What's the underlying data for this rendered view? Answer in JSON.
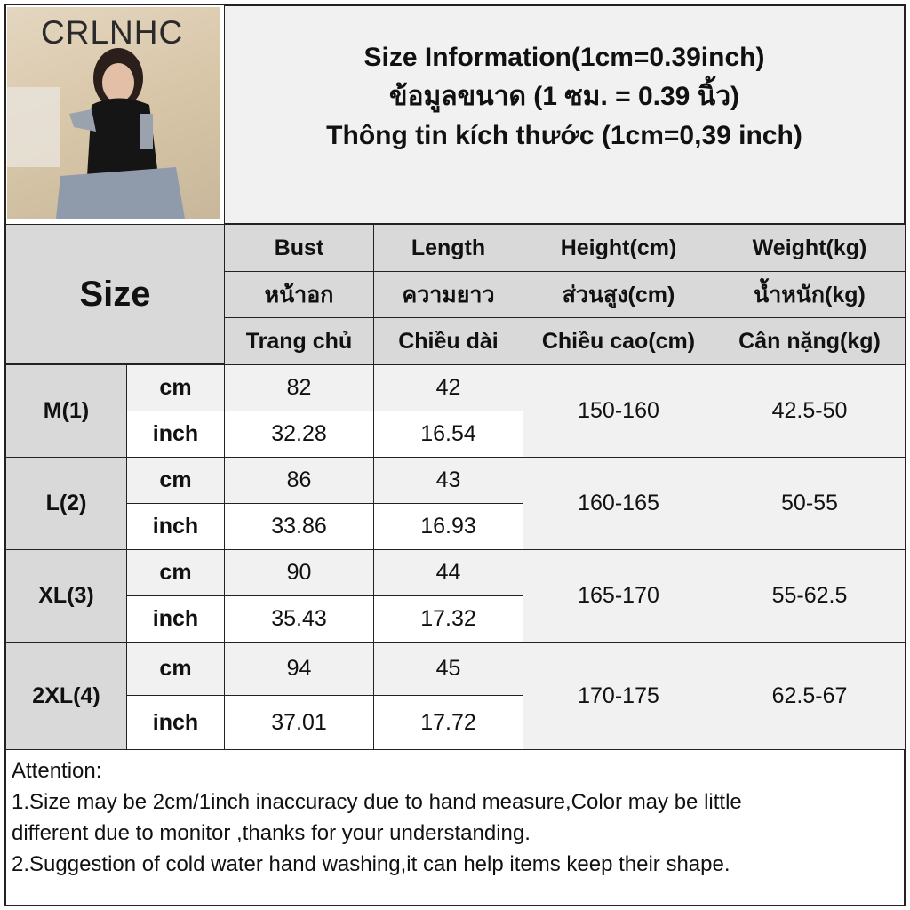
{
  "brand": "CRLNHC",
  "title": {
    "line1": "Size Information(1cm=0.39inch)",
    "line2": "ข้อมูลขนาด (1 ซม. = 0.39 นิ้ว)",
    "line3": "Thông tin kích thước (1cm=0,39 inch)"
  },
  "header": {
    "size_label": "Size",
    "columns": [
      {
        "en": "Bust",
        "th": "หน้าอก",
        "vi": "Trang chủ"
      },
      {
        "en": "Length",
        "th": "ความยาว",
        "vi": "Chiều dài"
      },
      {
        "en": "Height(cm)",
        "th": "ส่วนสูง(cm)",
        "vi": "Chiều cao(cm)"
      },
      {
        "en": "Weight(kg)",
        "th": "น้ำหนัก(kg)",
        "vi": "Cân nặng(kg)"
      }
    ]
  },
  "units": {
    "cm": "cm",
    "inch": "inch"
  },
  "rows": [
    {
      "size": "M(1)",
      "bust_cm": "82",
      "length_cm": "42",
      "bust_inch": "32.28",
      "length_inch": "16.54",
      "height": "150-160",
      "weight": "42.5-50"
    },
    {
      "size": "L(2)",
      "bust_cm": "86",
      "length_cm": "43",
      "bust_inch": "33.86",
      "length_inch": "16.93",
      "height": "160-165",
      "weight": "50-55"
    },
    {
      "size": "XL(3)",
      "bust_cm": "90",
      "length_cm": "44",
      "bust_inch": "35.43",
      "length_inch": "17.32",
      "height": "165-170",
      "weight": "55-62.5"
    },
    {
      "size": "2XL(4)",
      "bust_cm": "94",
      "length_cm": "45",
      "bust_inch": "37.01",
      "length_inch": "17.72",
      "height": "170-175",
      "weight": "62.5-67"
    }
  ],
  "attention": {
    "heading": "Attention:",
    "line1": "1.Size may be 2cm/1inch inaccuracy due to hand measure,Color may be little",
    "line2": "different due to monitor ,thanks for your understanding.",
    "line3": "2.Suggestion of cold water hand washing,it can help items keep their shape."
  }
}
